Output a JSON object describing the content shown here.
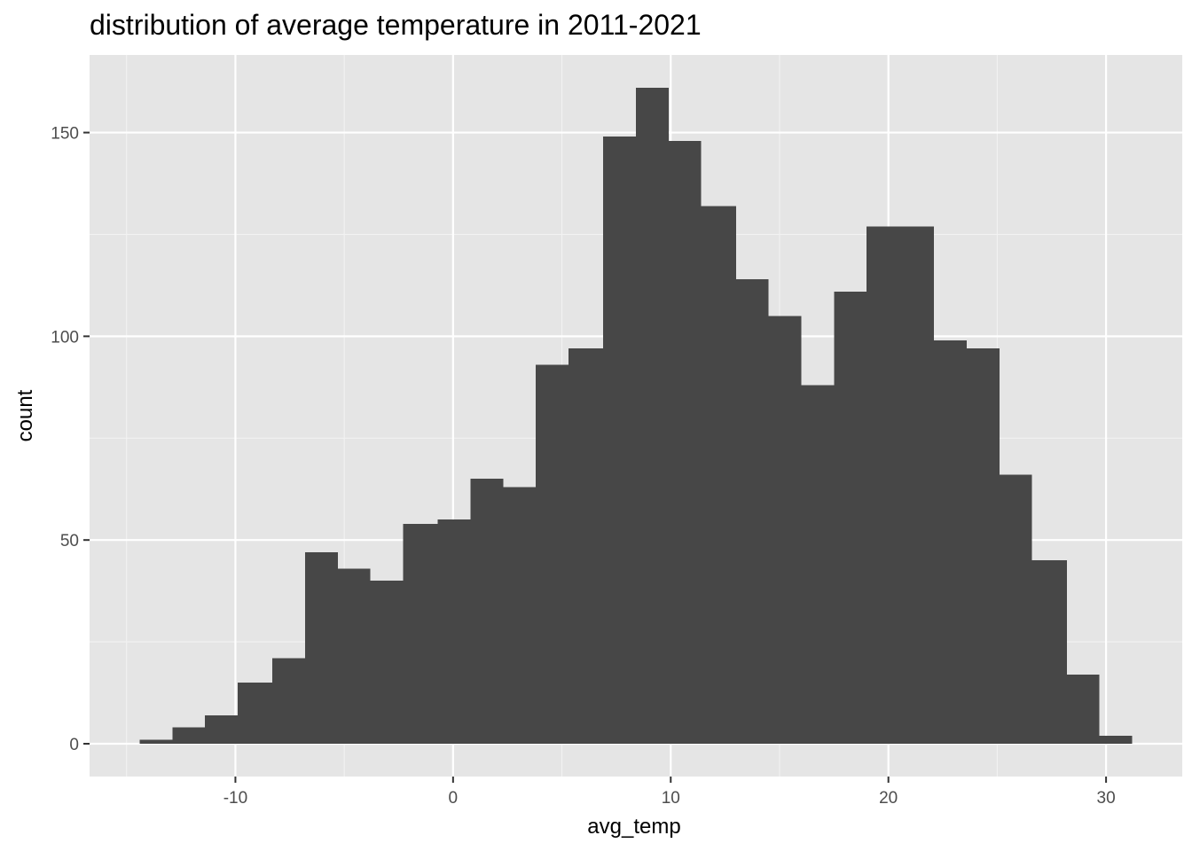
{
  "chart_data": {
    "type": "histogram",
    "title": "distribution of average temperature in 2011-2021",
    "xlabel": "avg_temp",
    "ylabel": "count",
    "bins": [
      {
        "x0": -14.4,
        "x1": -12.9,
        "count": 1
      },
      {
        "x0": -12.9,
        "x1": -11.4,
        "count": 4
      },
      {
        "x0": -11.4,
        "x1": -9.9,
        "count": 7
      },
      {
        "x0": -9.9,
        "x1": -8.3,
        "count": 15
      },
      {
        "x0": -8.3,
        "x1": -6.8,
        "count": 21
      },
      {
        "x0": -6.8,
        "x1": -5.3,
        "count": 47
      },
      {
        "x0": -5.3,
        "x1": -3.8,
        "count": 43
      },
      {
        "x0": -3.8,
        "x1": -2.3,
        "count": 40
      },
      {
        "x0": -2.3,
        "x1": -0.7,
        "count": 54
      },
      {
        "x0": -0.7,
        "x1": 0.8,
        "count": 55
      },
      {
        "x0": 0.8,
        "x1": 2.3,
        "count": 65
      },
      {
        "x0": 2.3,
        "x1": 3.8,
        "count": 63
      },
      {
        "x0": 3.8,
        "x1": 5.3,
        "count": 93
      },
      {
        "x0": 5.3,
        "x1": 6.9,
        "count": 97
      },
      {
        "x0": 6.9,
        "x1": 8.4,
        "count": 149
      },
      {
        "x0": 8.4,
        "x1": 9.9,
        "count": 161
      },
      {
        "x0": 9.9,
        "x1": 11.4,
        "count": 148
      },
      {
        "x0": 11.4,
        "x1": 13.0,
        "count": 132
      },
      {
        "x0": 13.0,
        "x1": 14.5,
        "count": 114
      },
      {
        "x0": 14.5,
        "x1": 16.0,
        "count": 105
      },
      {
        "x0": 16.0,
        "x1": 17.5,
        "count": 88
      },
      {
        "x0": 17.5,
        "x1": 19.0,
        "count": 111
      },
      {
        "x0": 19.0,
        "x1": 20.6,
        "count": 127
      },
      {
        "x0": 20.6,
        "x1": 22.1,
        "count": 127
      },
      {
        "x0": 22.1,
        "x1": 23.6,
        "count": 99
      },
      {
        "x0": 23.6,
        "x1": 25.1,
        "count": 97
      },
      {
        "x0": 25.1,
        "x1": 26.6,
        "count": 66
      },
      {
        "x0": 26.6,
        "x1": 28.2,
        "count": 45
      },
      {
        "x0": 28.2,
        "x1": 29.7,
        "count": 17
      },
      {
        "x0": 29.7,
        "x1": 31.2,
        "count": 2
      }
    ],
    "x_ticks": [
      -10,
      0,
      10,
      20,
      30
    ],
    "x_tick_labels": [
      "-10",
      "0",
      "10",
      "20",
      "30"
    ],
    "y_ticks": [
      0,
      50,
      100,
      150
    ],
    "y_tick_labels": [
      "0",
      "50",
      "100",
      "150"
    ],
    "xlim": [
      -16.7,
      33.5
    ],
    "ylim": [
      -8.05,
      169.05
    ],
    "grid": true,
    "colors": {
      "panel_background": "#e5e5e5",
      "grid_major": "#ffffff",
      "grid_minor": "#f2f2f2",
      "bar_fill": "#474747",
      "tick_mark": "#333333"
    }
  }
}
